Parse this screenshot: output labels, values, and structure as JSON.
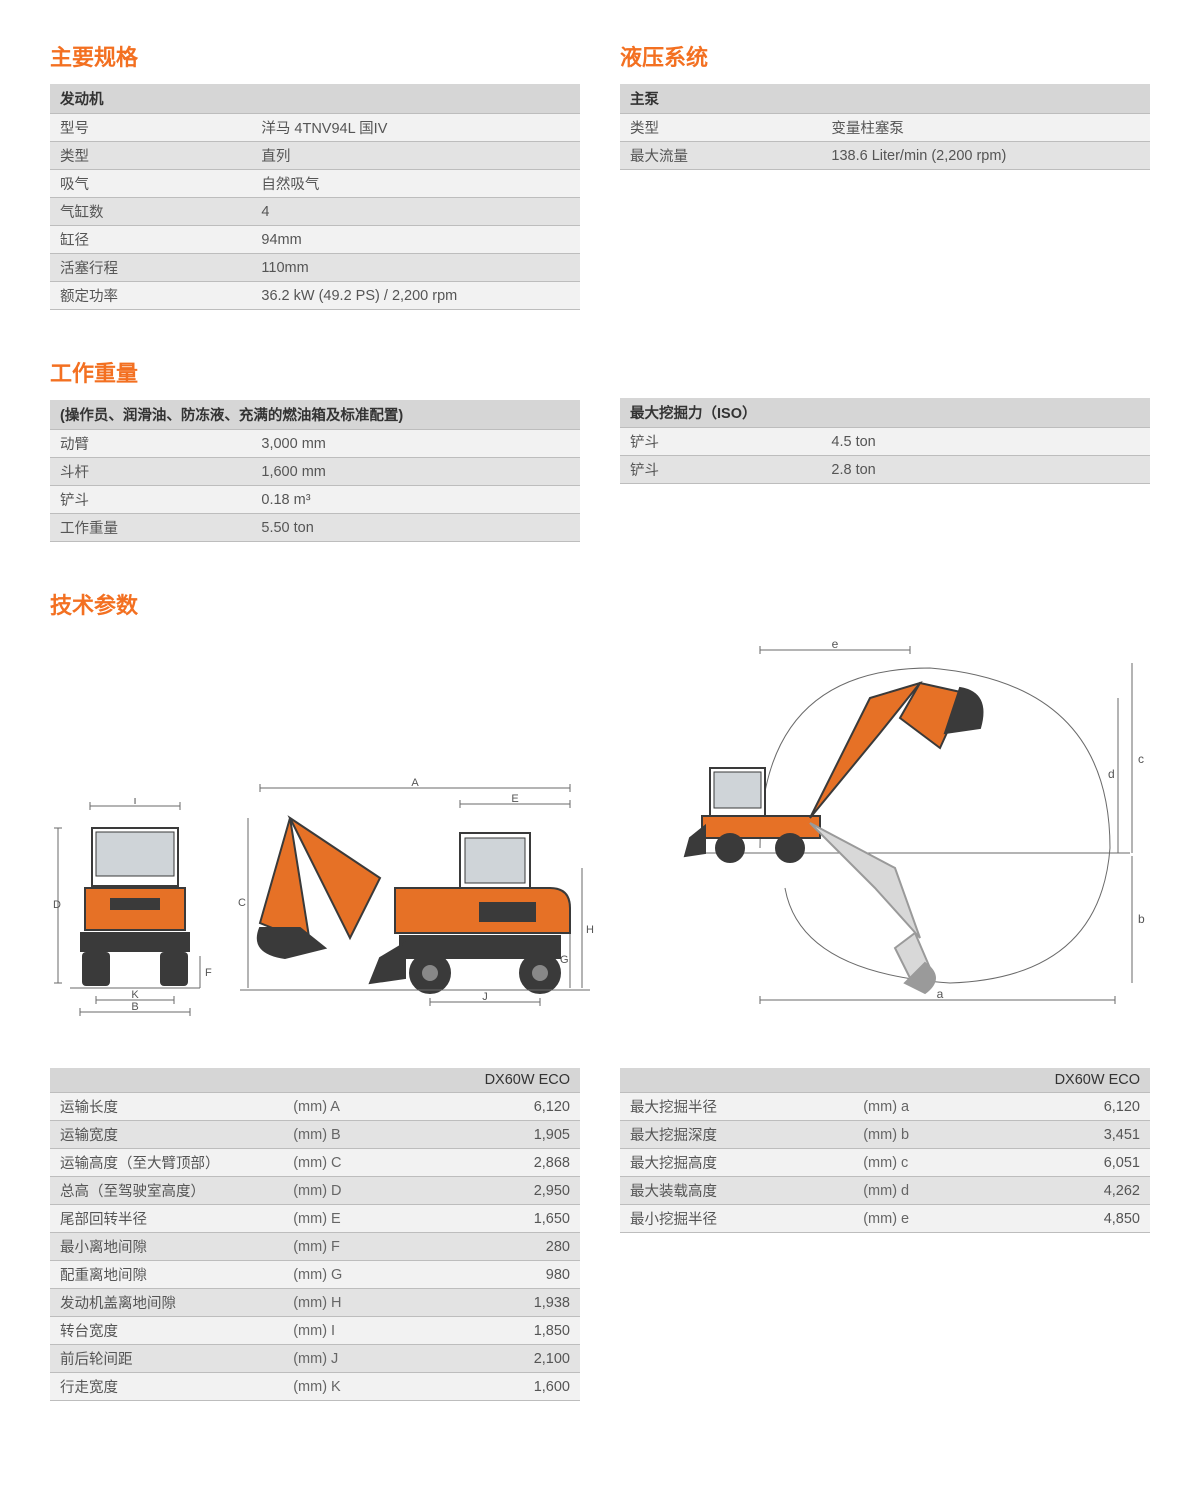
{
  "colors": {
    "accent": "#f37021",
    "row_odd": "#f2f2f2",
    "row_even": "#e3e3e3",
    "header_bg": "#d6d6d6",
    "border": "#bdbdbd",
    "text": "#555555",
    "excavator_orange": "#e67126",
    "excavator_dark": "#3a3a3a",
    "line": "#6a6a6a"
  },
  "sections": {
    "main_spec": {
      "title": "主要规格"
    },
    "hydraulic": {
      "title": "液压系统"
    },
    "weight": {
      "title": "工作重量"
    },
    "tech": {
      "title": "技术参数"
    }
  },
  "engine": {
    "header": "发动机",
    "rows": [
      {
        "label": "型号",
        "value": "洋马 4TNV94L 国IV"
      },
      {
        "label": "类型",
        "value": "直列"
      },
      {
        "label": "吸气",
        "value": "自然吸气"
      },
      {
        "label": "气缸数",
        "value": "4"
      },
      {
        "label": "缸径",
        "value": "94mm"
      },
      {
        "label": "活塞行程",
        "value": "110mm"
      },
      {
        "label": "额定功率",
        "value": "36.2 kW (49.2 PS) / 2,200 rpm"
      }
    ]
  },
  "pump": {
    "header": "主泵",
    "rows": [
      {
        "label": "类型",
        "value": "变量柱塞泵"
      },
      {
        "label": "最大流量",
        "value": "138.6 Liter/min (2,200 rpm)"
      }
    ]
  },
  "weight_left": {
    "header": "(操作员、润滑油、防冻液、充满的燃油箱及标准配置)",
    "rows": [
      {
        "label": "动臂",
        "value": "3,000 mm"
      },
      {
        "label": "斗杆",
        "value": "1,600 mm"
      },
      {
        "label": "铲斗",
        "value": "0.18 m³"
      },
      {
        "label": "工作重量",
        "value": "5.50 ton"
      }
    ]
  },
  "weight_right": {
    "header": "最大挖掘力（ISO）",
    "rows": [
      {
        "label": "铲斗",
        "value": "4.5 ton"
      },
      {
        "label": "铲斗",
        "value": "2.8 ton"
      }
    ]
  },
  "dims_left": {
    "model": "DX60W ECO",
    "rows": [
      {
        "label": "运输长度",
        "unit": "(mm) A",
        "value": "6,120"
      },
      {
        "label": "运输宽度",
        "unit": "(mm) B",
        "value": "1,905"
      },
      {
        "label": "运输高度（至大臂顶部）",
        "unit": "(mm) C",
        "value": "2,868"
      },
      {
        "label": "总高（至驾驶室高度）",
        "unit": "(mm) D",
        "value": "2,950"
      },
      {
        "label": "尾部回转半径",
        "unit": "(mm) E",
        "value": "1,650"
      },
      {
        "label": "最小离地间隙",
        "unit": "(mm) F",
        "value": "280"
      },
      {
        "label": "配重离地间隙",
        "unit": "(mm) G",
        "value": "980"
      },
      {
        "label": "发动机盖离地间隙",
        "unit": "(mm) H",
        "value": "1,938"
      },
      {
        "label": "转台宽度",
        "unit": "(mm)  I",
        "value": "1,850"
      },
      {
        "label": "前后轮间距",
        "unit": "(mm) J",
        "value": "2,100"
      },
      {
        "label": "行走宽度",
        "unit": "(mm) K",
        "value": "1,600"
      }
    ]
  },
  "dims_right": {
    "model": "DX60W ECO",
    "rows": [
      {
        "label": "最大挖掘半径",
        "unit": "(mm) a",
        "value": "6,120"
      },
      {
        "label": "最大挖掘深度",
        "unit": "(mm) b",
        "value": "3,451"
      },
      {
        "label": "最大挖掘高度",
        "unit": "(mm) c",
        "value": "6,051"
      },
      {
        "label": "最大装载高度",
        "unit": "(mm) d",
        "value": "4,262"
      },
      {
        "label": "最小挖掘半径",
        "unit": "(mm) e",
        "value": "4,850"
      }
    ]
  },
  "diagram_labels": {
    "front": [
      "I",
      "D",
      "F",
      "K",
      "B"
    ],
    "side": [
      "A",
      "E",
      "C",
      "H",
      "G",
      "J"
    ],
    "reach": [
      "e",
      "c",
      "d",
      "b",
      "a"
    ]
  }
}
